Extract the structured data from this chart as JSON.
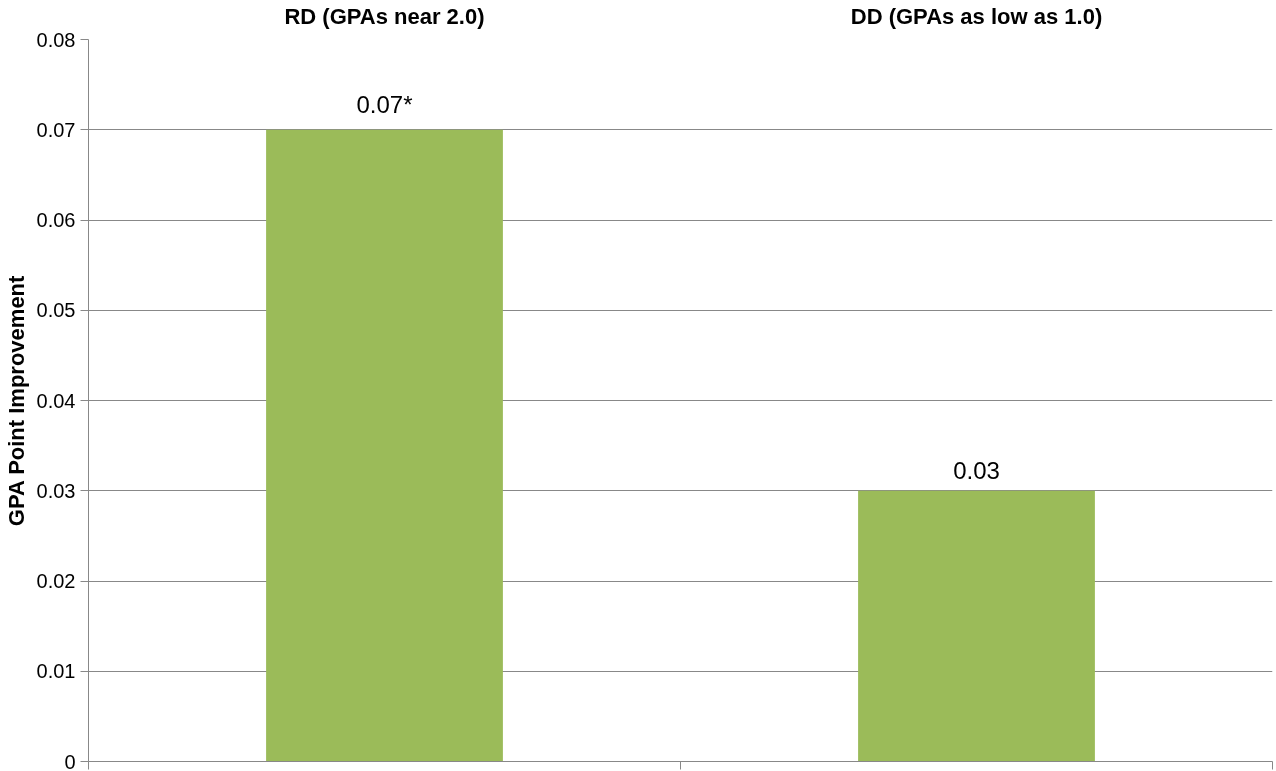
{
  "chart_data": {
    "type": "bar",
    "ylabel": "GPA Point Improvement",
    "categories": [
      "RD (GPAs near 2.0)",
      "DD (GPAs as low as 1.0)"
    ],
    "values": [
      0.07,
      0.03
    ],
    "color": "#9bbb59",
    "value_labels": [
      "0.07*",
      "0.03"
    ],
    "ylim": [
      0,
      0.08
    ],
    "yticks": [
      0,
      0.01,
      0.02,
      0.03,
      0.04,
      0.05,
      0.06,
      0.07,
      0.08
    ],
    "grid": "y"
  }
}
